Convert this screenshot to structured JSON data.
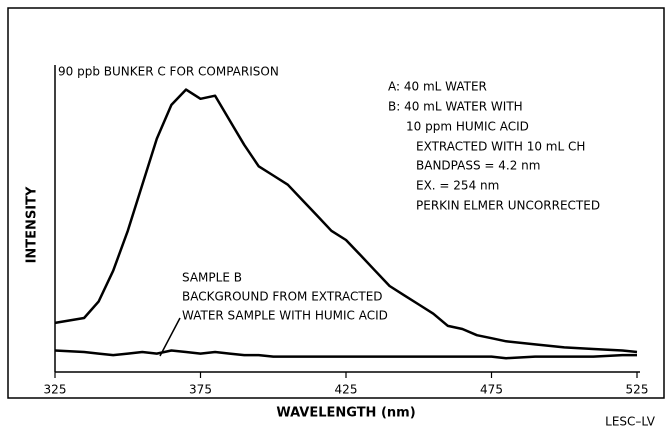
{
  "chart_data": {
    "type": "line",
    "xlabel": "WAVELENGTH (nm)",
    "ylabel": "INTENSITY",
    "x": [
      325,
      335,
      340,
      345,
      350,
      355,
      360,
      365,
      370,
      375,
      380,
      385,
      390,
      395,
      400,
      405,
      410,
      415,
      420,
      425,
      430,
      435,
      440,
      445,
      450,
      455,
      460,
      465,
      470,
      475,
      480,
      490,
      500,
      510,
      520,
      525
    ],
    "series": [
      {
        "color": "#000000",
        "values": [
          16,
          17.6,
          23,
          33,
          46,
          61,
          76,
          87,
          92,
          89,
          90,
          82,
          74,
          67,
          64,
          61,
          56,
          51,
          46,
          43,
          38,
          33,
          28,
          25,
          22,
          19,
          15,
          14,
          12,
          11,
          10,
          9,
          8,
          7.5,
          7,
          6.5
        ]
      },
      {
        "color": "#000000",
        "values": [
          7,
          6.5,
          6,
          5.5,
          6,
          6.5,
          6,
          7,
          6.5,
          6,
          6.5,
          6,
          5.5,
          5.5,
          5,
          5,
          5,
          5,
          5,
          5,
          5,
          5,
          5,
          5,
          5,
          5,
          5,
          5,
          5,
          5,
          4.5,
          5,
          5,
          5,
          5.5,
          5.5
        ]
      }
    ],
    "xlim": [
      325,
      525
    ],
    "xticks": [
      325,
      375,
      425,
      475,
      525
    ],
    "ylim": [
      0,
      100
    ],
    "annotations": [
      "90 ppb BUNKER C FOR COMPARISON",
      "A: 40 mL WATER",
      "B: 40 mL WATER WITH",
      "10 ppm HUMIC ACID",
      "EXTRACTED WITH 10 mL CH",
      "BANDPASS = 4.2 nm",
      "EX. = 254 nm",
      "PERKIN ELMER UNCORRECTED",
      "SAMPLE B",
      "BACKGROUND FROM EXTRACTED",
      "WATER SAMPLE WITH HUMIC ACID",
      "LESC–LV"
    ]
  }
}
